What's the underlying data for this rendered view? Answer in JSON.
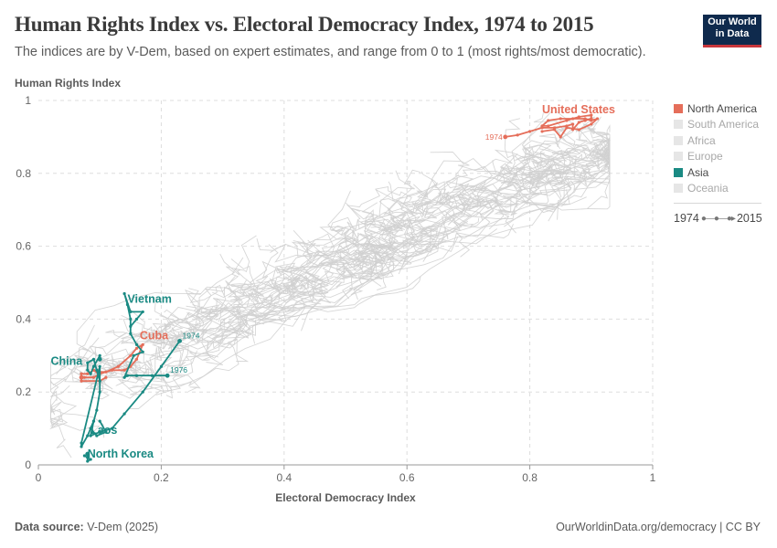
{
  "header": {
    "title": "Human Rights Index vs. Electoral Democracy Index, 1974 to 2015",
    "subtitle": "The indices are by V-Dem, based on expert estimates, and range from 0 to 1 (most rights/most democratic)."
  },
  "logo": {
    "line1": "Our World",
    "line2": "in Data",
    "bg_color": "#0f2a4d",
    "accent_color": "#c8363c"
  },
  "footer": {
    "source_label": "Data source:",
    "source_value": "V-Dem (2025)",
    "url": "OurWorldinData.org/democracy | CC BY"
  },
  "legend": {
    "items": [
      {
        "label": "North America",
        "color": "#e56e5a",
        "active": true
      },
      {
        "label": "South America",
        "color": "#e6e6e6",
        "active": false
      },
      {
        "label": "Africa",
        "color": "#e6e6e6",
        "active": false
      },
      {
        "label": "Europe",
        "color": "#e6e6e6",
        "active": false
      },
      {
        "label": "Asia",
        "color": "#1a8a83",
        "active": true
      },
      {
        "label": "Oceania",
        "color": "#e6e6e6",
        "active": false
      }
    ],
    "timeline_start": "1974",
    "timeline_end": "2015"
  },
  "chart_data": {
    "type": "scatter",
    "xlabel": "Electoral Democracy Index",
    "ylabel": "Human Rights Index",
    "xlim": [
      0,
      1
    ],
    "ylim": [
      0,
      1
    ],
    "xticks": [
      "0",
      "0.2",
      "0.4",
      "0.6",
      "0.8",
      "1"
    ],
    "yticks": [
      "0",
      "0.2",
      "0.4",
      "0.6",
      "0.8",
      "1"
    ],
    "grid": true,
    "background_color": "#d0d0d0",
    "highlight_series": [
      {
        "name": "United States",
        "color": "#e56e5a",
        "start_label": "1974",
        "points": [
          [
            0.76,
            0.9
          ],
          [
            0.78,
            0.905
          ],
          [
            0.8,
            0.915
          ],
          [
            0.82,
            0.925
          ],
          [
            0.84,
            0.925
          ],
          [
            0.86,
            0.93
          ],
          [
            0.87,
            0.935
          ],
          [
            0.87,
            0.92
          ],
          [
            0.88,
            0.94
          ],
          [
            0.89,
            0.945
          ],
          [
            0.9,
            0.95
          ],
          [
            0.9,
            0.96
          ],
          [
            0.88,
            0.955
          ],
          [
            0.86,
            0.945
          ],
          [
            0.83,
            0.93
          ],
          [
            0.82,
            0.93
          ],
          [
            0.83,
            0.945
          ],
          [
            0.85,
            0.95
          ],
          [
            0.87,
            0.95
          ],
          [
            0.89,
            0.95
          ],
          [
            0.9,
            0.945
          ],
          [
            0.91,
            0.95
          ],
          [
            0.9,
            0.935
          ],
          [
            0.88,
            0.92
          ],
          [
            0.86,
            0.925
          ],
          [
            0.85,
            0.9
          ],
          [
            0.84,
            0.92
          ],
          [
            0.82,
            0.915
          ]
        ]
      },
      {
        "name": "Cuba",
        "color": "#e56e5a",
        "start_label": "",
        "points": [
          [
            0.07,
            0.24
          ],
          [
            0.075,
            0.24
          ],
          [
            0.09,
            0.24
          ],
          [
            0.1,
            0.25
          ],
          [
            0.12,
            0.26
          ],
          [
            0.14,
            0.26
          ],
          [
            0.15,
            0.27
          ],
          [
            0.16,
            0.29
          ],
          [
            0.17,
            0.33
          ],
          [
            0.16,
            0.32
          ],
          [
            0.15,
            0.3
          ],
          [
            0.13,
            0.27
          ],
          [
            0.11,
            0.255
          ],
          [
            0.095,
            0.255
          ],
          [
            0.09,
            0.26
          ],
          [
            0.08,
            0.25
          ],
          [
            0.07,
            0.25
          ],
          [
            0.07,
            0.23
          ],
          [
            0.1,
            0.23
          ],
          [
            0.11,
            0.24
          ]
        ]
      },
      {
        "name": "Vietnam",
        "color": "#1a8a83",
        "start_label": "1976",
        "points": [
          [
            0.21,
            0.245
          ],
          [
            0.185,
            0.245
          ],
          [
            0.16,
            0.245
          ],
          [
            0.145,
            0.245
          ],
          [
            0.14,
            0.24
          ],
          [
            0.155,
            0.3
          ],
          [
            0.17,
            0.31
          ],
          [
            0.16,
            0.33
          ],
          [
            0.15,
            0.36
          ],
          [
            0.15,
            0.4
          ],
          [
            0.145,
            0.44
          ],
          [
            0.14,
            0.47
          ],
          [
            0.15,
            0.42
          ],
          [
            0.17,
            0.42
          ],
          [
            0.16,
            0.4
          ],
          [
            0.15,
            0.38
          ]
        ]
      },
      {
        "name": "Laos",
        "color": "#1a8a83",
        "start_label": "1974",
        "points": [
          [
            0.23,
            0.34
          ],
          [
            0.2,
            0.27
          ],
          [
            0.17,
            0.2
          ],
          [
            0.14,
            0.14
          ],
          [
            0.12,
            0.1
          ],
          [
            0.1,
            0.09
          ],
          [
            0.085,
            0.08
          ],
          [
            0.09,
            0.12
          ],
          [
            0.085,
            0.1
          ],
          [
            0.095,
            0.08
          ],
          [
            0.11,
            0.09
          ],
          [
            0.1,
            0.12
          ]
        ]
      },
      {
        "name": "China",
        "color": "#1a8a83",
        "start_label": "",
        "points": [
          [
            0.1,
            0.29
          ],
          [
            0.1,
            0.3
          ],
          [
            0.09,
            0.27
          ],
          [
            0.085,
            0.25
          ],
          [
            0.08,
            0.26
          ],
          [
            0.08,
            0.28
          ],
          [
            0.09,
            0.29
          ],
          [
            0.095,
            0.26
          ],
          [
            0.1,
            0.23
          ],
          [
            0.1,
            0.2
          ],
          [
            0.095,
            0.15
          ],
          [
            0.09,
            0.12
          ],
          [
            0.08,
            0.08
          ],
          [
            0.07,
            0.05
          ],
          [
            0.07,
            0.06
          ],
          [
            0.1,
            0.27
          ],
          [
            0.1,
            0.23
          ]
        ]
      },
      {
        "name": "North Korea",
        "color": "#1a8a83",
        "start_label": "",
        "points": [
          [
            0.08,
            0.03
          ],
          [
            0.08,
            0.02
          ],
          [
            0.08,
            0.01
          ],
          [
            0.085,
            0.015
          ],
          [
            0.075,
            0.025
          ]
        ]
      }
    ],
    "series_labels": [
      {
        "name": "United States",
        "at": [
          0.82,
          0.965
        ],
        "color": "#e56e5a"
      },
      {
        "name": "Cuba",
        "at": [
          0.165,
          0.345
        ],
        "color": "#e56e5a"
      },
      {
        "name": "Vietnam",
        "at": [
          0.145,
          0.445
        ],
        "color": "#1a8a83"
      },
      {
        "name": "China",
        "at": [
          0.02,
          0.275
        ],
        "color": "#1a8a83"
      },
      {
        "name": "Laos",
        "at": [
          0.085,
          0.085
        ],
        "color": "#1a8a83"
      },
      {
        "name": "North Korea",
        "at": [
          0.08,
          0.02
        ],
        "color": "#1a8a83"
      }
    ]
  }
}
